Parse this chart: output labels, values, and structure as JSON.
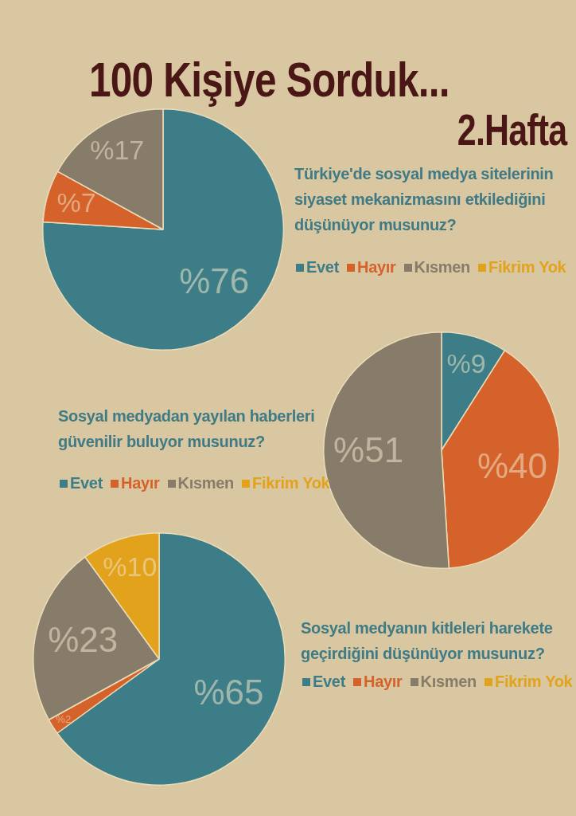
{
  "chart_data": [
    {
      "type": "other",
      "title": "100 Kişiye Sorduk...",
      "subtitle": "2.Hafta"
    },
    {
      "type": "pie",
      "title": "Türkiye'de sosyal medya sitelerinin siyaset mekanizmasını etkilediğini düşünüyor musunuz?",
      "categories": [
        "Evet",
        "Hayır",
        "Kısmen",
        "Fikrim Yok"
      ],
      "values": [
        76,
        7,
        17,
        0
      ],
      "colors": [
        "#3d7d88",
        "#d5622a",
        "#877c69",
        "#e3a21b"
      ],
      "value_labels": [
        "%76",
        "%7",
        "%17",
        null
      ],
      "legend": "right"
    },
    {
      "type": "pie",
      "title": "Sosyal medyadan yayılan haberleri güvenilir buluyor musunuz?",
      "categories": [
        "Evet",
        "Hayır",
        "Kısmen",
        "Fikrim Yok"
      ],
      "values": [
        9,
        40,
        51,
        0
      ],
      "colors": [
        "#3d7d88",
        "#d5622a",
        "#877c69",
        "#e3a21b"
      ],
      "value_labels": [
        "%9",
        "%40",
        "%51",
        null
      ],
      "legend": "left"
    },
    {
      "type": "pie",
      "title": "Sosyal medyanın kitleleri harekete geçirdiğini düşünüyor musunuz?",
      "categories": [
        "Evet",
        "Hayır",
        "Kısmen",
        "Fikrim Yok"
      ],
      "values": [
        65,
        2,
        23,
        10
      ],
      "colors": [
        "#3d7d88",
        "#d5622a",
        "#877c69",
        "#e3a21b"
      ],
      "value_labels": [
        "%65",
        "%2",
        "%23",
        "%10"
      ],
      "legend": "right"
    }
  ]
}
